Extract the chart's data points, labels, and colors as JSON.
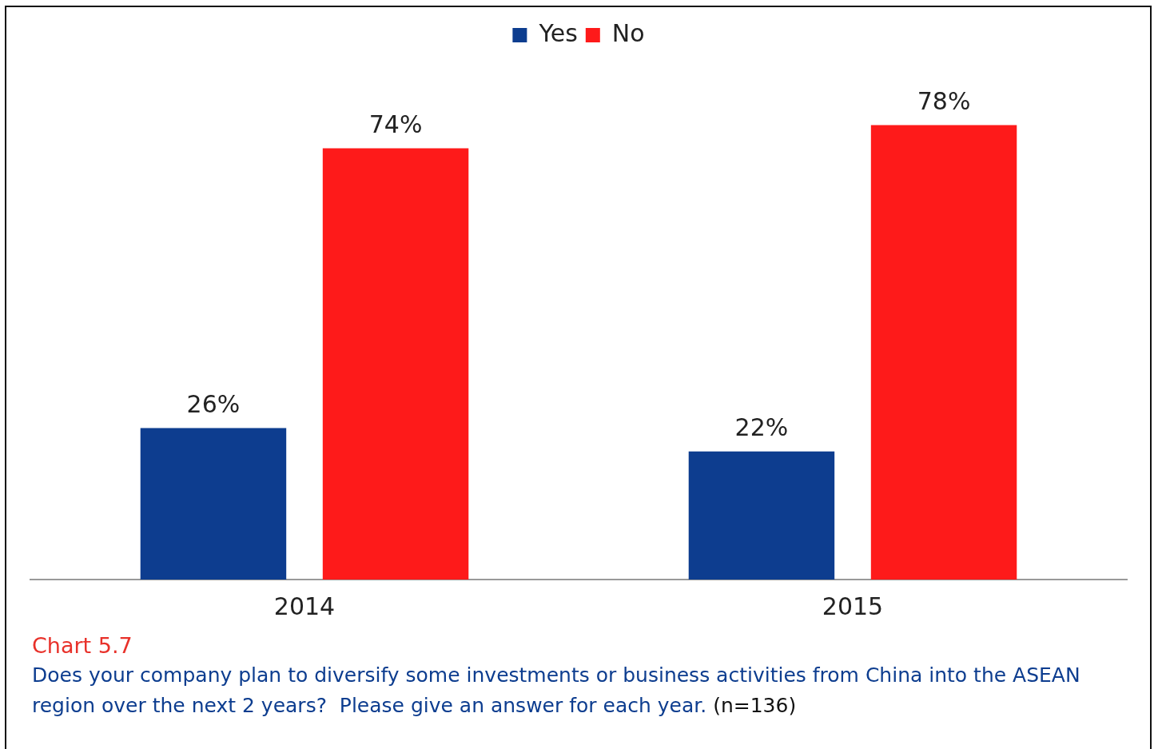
{
  "chart_data": {
    "type": "bar",
    "categories": [
      "2014",
      "2015"
    ],
    "series": [
      {
        "name": "Yes",
        "color": "#0d3d8f",
        "values": [
          26,
          22
        ],
        "value_labels": [
          "26%",
          "22%"
        ]
      },
      {
        "name": "No",
        "color": "#fe1a1a",
        "values": [
          74,
          78
        ],
        "value_labels": [
          "74%",
          "78%"
        ]
      }
    ],
    "grid": false,
    "legend": "top",
    "tick_labels": "x",
    "annotations": [
      "Chart 5.7",
      "Does your company plan to diversify some investments or business activities from China into the ASEAN region over the next 2 years?  Please give an answer for each year.",
      "(n=136)"
    ]
  }
}
